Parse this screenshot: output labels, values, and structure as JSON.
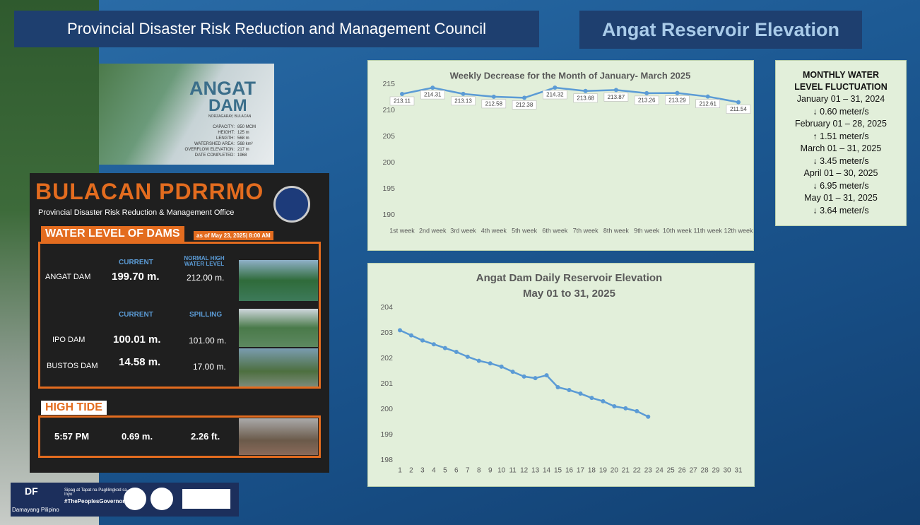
{
  "header": {
    "left_title": "Provincial Disaster Risk Reduction and Management Council",
    "right_title": "Angat Reservoir Elevation"
  },
  "angat_card": {
    "title": "ANGAT",
    "subtitle": "DAM",
    "location": "NORZAGARAY, BULACAN",
    "specs": [
      [
        "CAPACITY:",
        "850 MCM"
      ],
      [
        "HEIGHT:",
        "125 m"
      ],
      [
        "LENGTH:",
        "568 m"
      ],
      [
        "WATERSHED AREA:",
        "568 km²"
      ],
      [
        "OVERFLOW ELEVATION:",
        "217 m"
      ],
      [
        "DATE COMPLETED:",
        "1968"
      ]
    ]
  },
  "pdrrmo": {
    "brand": "BULACAN PDRRMO",
    "office": "Provincial Disaster Risk Reduction & Management Office",
    "section": "WATER LEVEL OF DAMS",
    "as_of": "as of May 23, 2025| 8:00 AM",
    "angat_headers": [
      "CURRENT",
      "NORMAL HIGH WATER LEVEL"
    ],
    "angat": [
      "ANGAT DAM",
      "199.70 m.",
      "212.00 m."
    ],
    "other_headers": [
      "CURRENT",
      "SPILLING"
    ],
    "ipo": [
      "IPO DAM",
      "100.01 m.",
      "101.00 m."
    ],
    "bustos": [
      "BUSTOS DAM",
      "14.58 m.",
      "17.00 m."
    ],
    "tide_title": "HIGH TIDE",
    "tide": [
      "5:57 PM",
      "0.69 m.",
      "2.26 ft."
    ]
  },
  "monthly": {
    "title": "MONTHLY WATER LEVEL FLUCTUATION",
    "entries": [
      [
        "January 01 – 31, 2024",
        "↓ 0.60 meter/s"
      ],
      [
        "February 01 – 28, 2025",
        "↑ 1.51 meter/s"
      ],
      [
        "March 01 – 31, 2025",
        "↓ 3.45 meter/s"
      ],
      [
        "April 01 – 30, 2025",
        "↓ 6.95  meter/s"
      ],
      [
        "May 01 – 31, 2025",
        "↓ 3.64 meter/s"
      ]
    ]
  },
  "footer": {
    "logo": "DF",
    "org": "Damayang Pilipino",
    "motto": "Sipag at Tapat na Paglilingkod sa Inyo",
    "tag": "#ThePeoplesGovernor"
  },
  "chart_data": [
    {
      "type": "line",
      "title": "Weekly Decrease for the Month of  January- March 2025",
      "categories": [
        "1st week",
        "2nd week",
        "3rd week",
        "4th week",
        "5th week",
        "6th week",
        "7th week",
        "8th week",
        "9th week",
        "10th week",
        "11th week",
        "12th week"
      ],
      "values": [
        213.11,
        214.31,
        213.13,
        212.58,
        212.38,
        214.32,
        213.68,
        213.87,
        213.26,
        213.29,
        212.61,
        211.54
      ],
      "color": "#5b9bd5",
      "ylim": [
        190,
        215
      ],
      "yticks": [
        190,
        195,
        200,
        205,
        210,
        215
      ],
      "data_labels": true
    },
    {
      "type": "line",
      "title": "Angat Dam Daily Reservoir Elevation",
      "subtitle": "May 01 to 31, 2025",
      "categories": [
        "1",
        "2",
        "3",
        "4",
        "5",
        "6",
        "7",
        "8",
        "9",
        "10",
        "11",
        "12",
        "13",
        "14",
        "15",
        "16",
        "17",
        "18",
        "19",
        "20",
        "21",
        "22",
        "23",
        "24",
        "25",
        "26",
        "27",
        "28",
        "29",
        "30",
        "31"
      ],
      "values": [
        203.1,
        202.9,
        202.7,
        202.55,
        202.4,
        202.25,
        202.06,
        201.9,
        201.8,
        201.67,
        201.47,
        201.28,
        201.22,
        201.33,
        200.86,
        200.75,
        200.61,
        200.44,
        200.31,
        200.11,
        200.03,
        199.92,
        199.7,
        null,
        null,
        null,
        null,
        null,
        null,
        null,
        null
      ],
      "color": "#5b9bd5",
      "ylim": [
        198,
        204
      ],
      "yticks": [
        198,
        199,
        200,
        201,
        202,
        203,
        204
      ],
      "data_labels": false
    }
  ]
}
